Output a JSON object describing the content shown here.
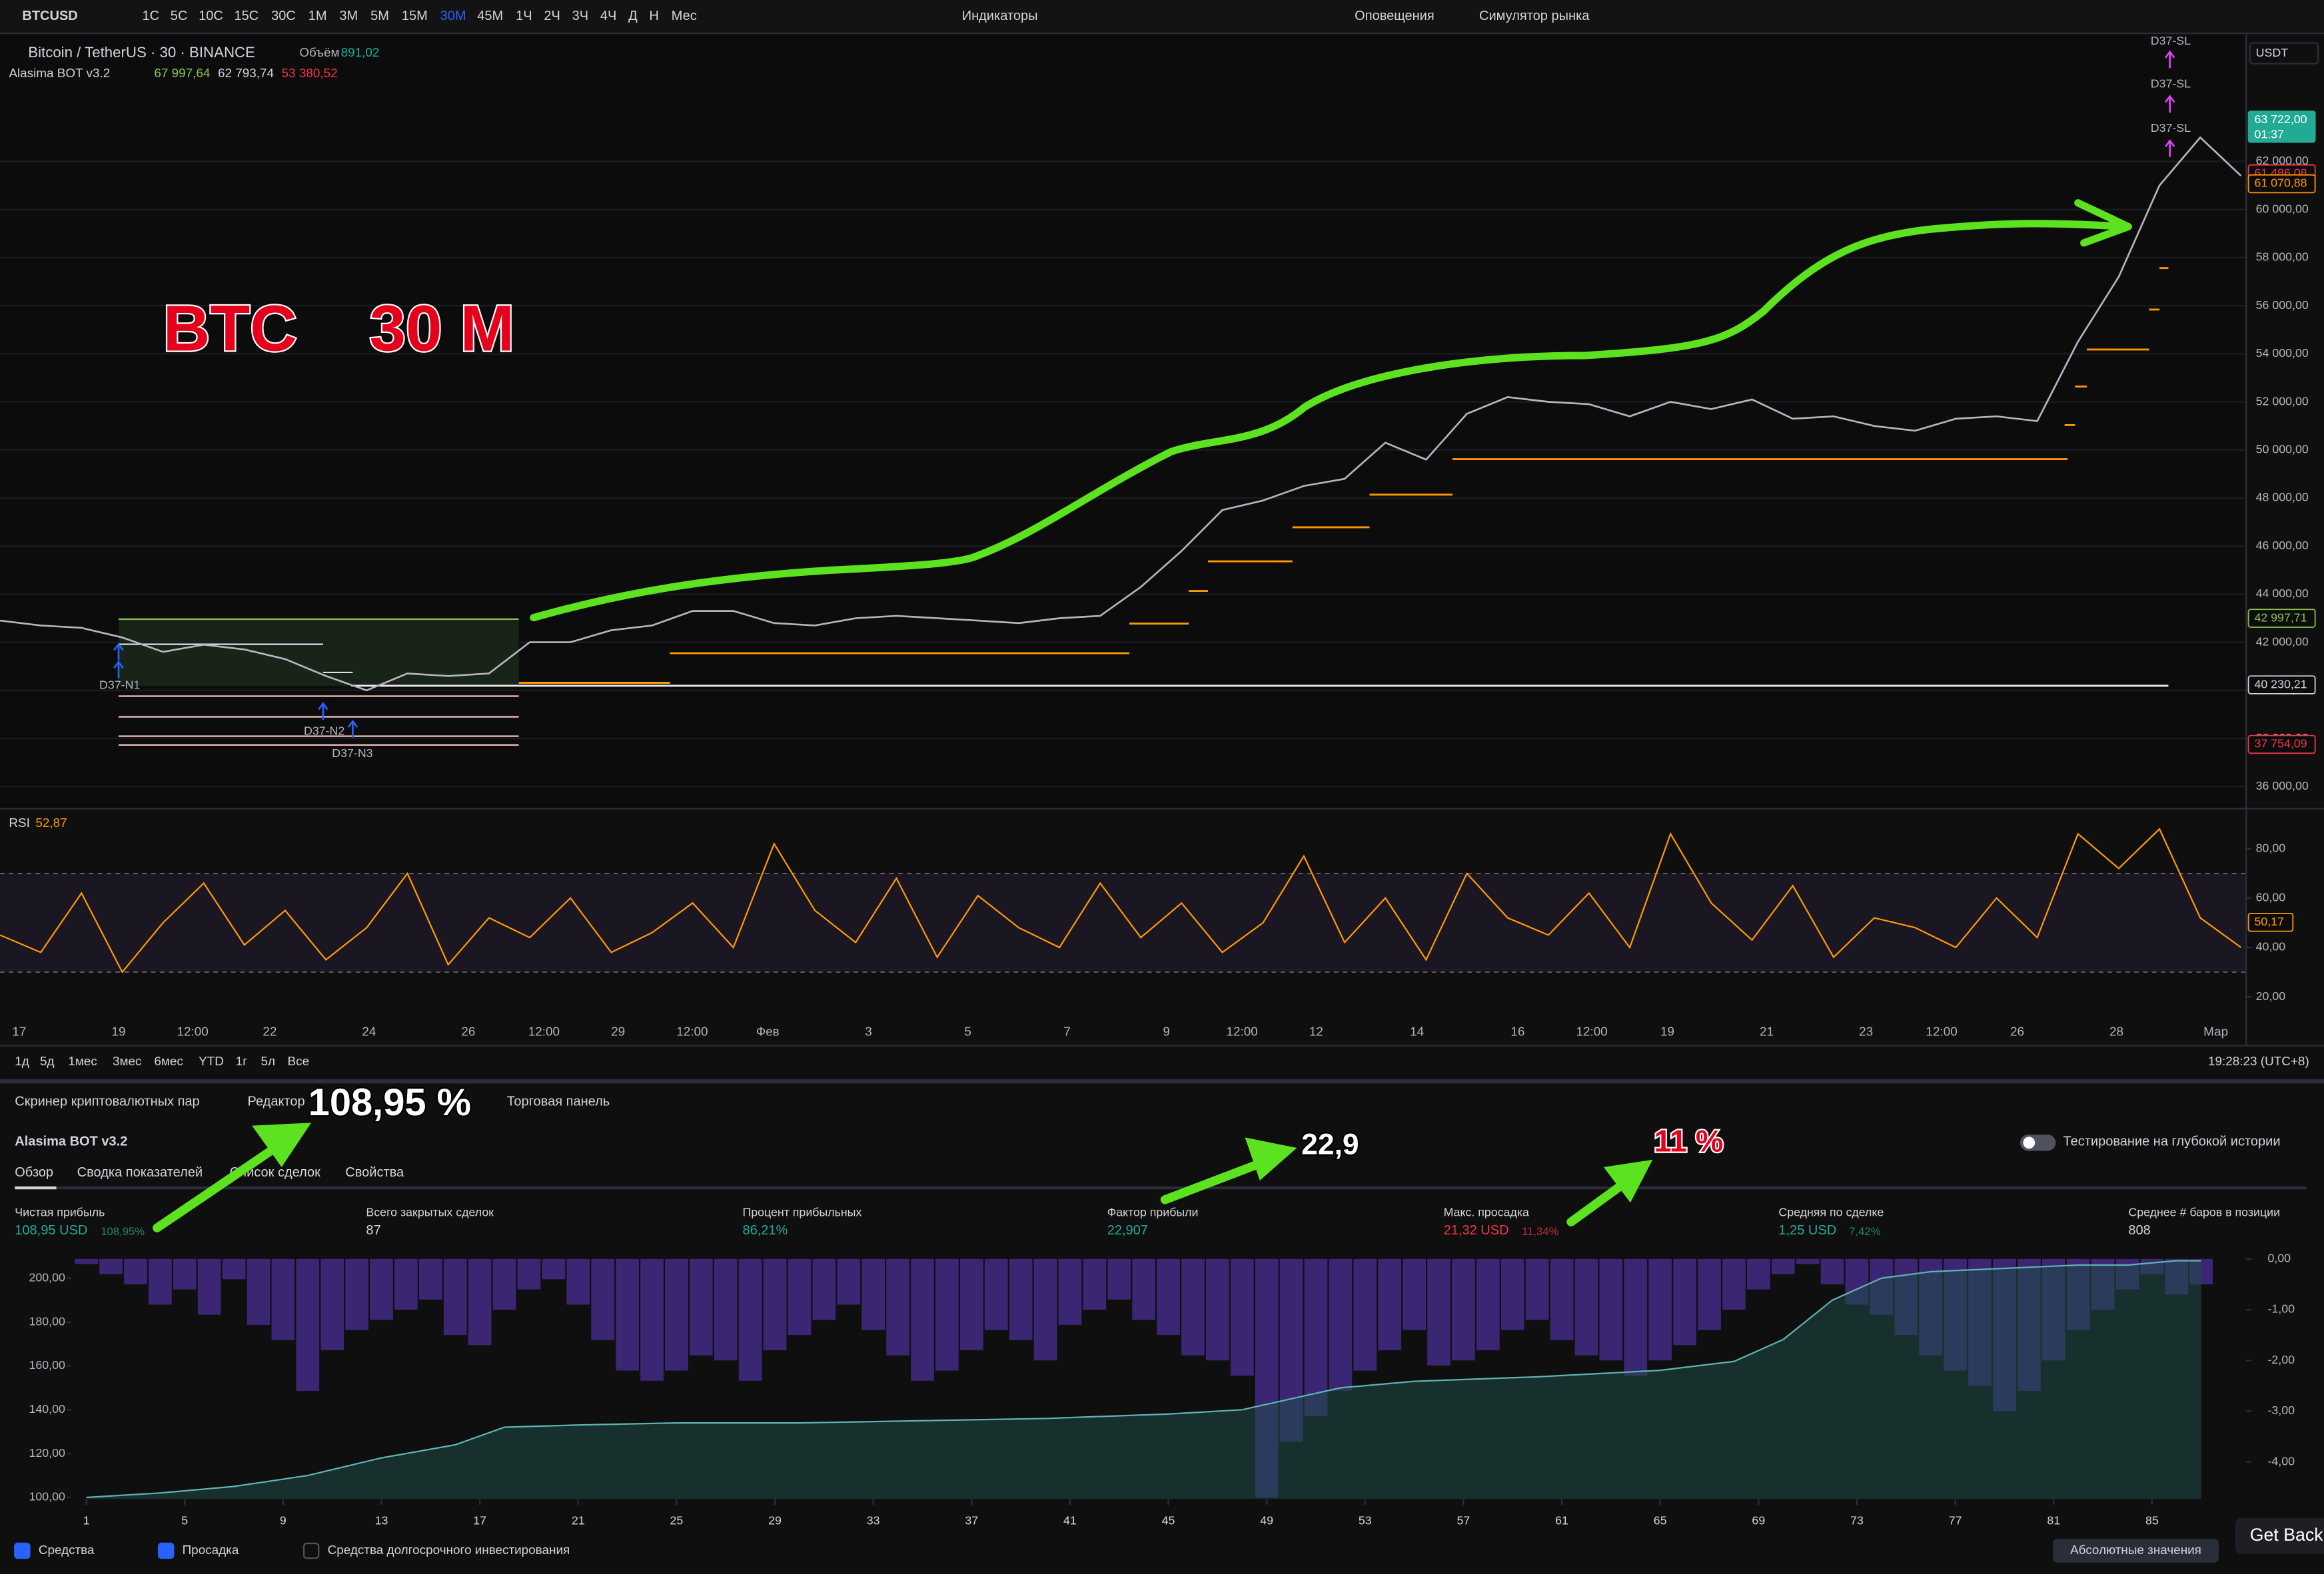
{
  "toolbar": {
    "symbol": "BTCUSD",
    "intervals": [
      "1С",
      "5С",
      "10С",
      "15С",
      "30С",
      "1М",
      "3М",
      "5М",
      "15М",
      "30М",
      "45М",
      "1Ч",
      "2Ч",
      "3Ч",
      "4Ч",
      "Д",
      "Н",
      "Мес"
    ],
    "indicators": "Индикаторы",
    "alerts": "Оповещения",
    "replay": "Симулятор рынка"
  },
  "chart_header": {
    "title": "Bitcoin / TetherUS · 30 · BINANCE",
    "volume_label": "Объём",
    "volume": "891,02",
    "indicator": "Alasima BOT v3.2",
    "indicator_values": [
      "67 997,64",
      "62 793,74",
      "53 380,52"
    ],
    "currency": "USDT"
  },
  "annotations": {
    "headline": "BTC    30 M",
    "profit": "108,95 %",
    "factor": "22,9",
    "drawdown": "11 %"
  },
  "signals": [
    "D37-N1",
    "D37-N2",
    "D37-N3",
    "D37-SL",
    "D37-SL",
    "D37-SL"
  ],
  "chart_data": [
    {
      "type": "line",
      "color": "#b2b5be",
      "values": [
        42900,
        42700,
        42600,
        42200,
        41600,
        41900,
        41700,
        41300,
        40600,
        40000,
        40700,
        40600,
        40700,
        42000,
        42000,
        42500,
        42700,
        43300,
        43300,
        42800,
        42700,
        43000,
        43100,
        43000,
        42900,
        42800,
        43000,
        43100,
        44300,
        45800,
        47500,
        47900,
        48500,
        48800,
        50300,
        49600,
        51500,
        52200,
        52000,
        51900,
        51400,
        52000,
        51700,
        52100,
        51300,
        51400,
        51000,
        50800,
        51300,
        51400,
        51200,
        54500,
        57200,
        61000,
        63000,
        61400
      ],
      "ylim": [
        35140,
        67360
      ],
      "yticks": [
        {
          "value": 62000,
          "label": "62 000,00"
        },
        {
          "value": 60000,
          "label": "60 000,00"
        },
        {
          "value": 58000,
          "label": "58 000,00"
        },
        {
          "value": 56000,
          "label": "56 000,00"
        },
        {
          "value": 54000,
          "label": "54 000,00"
        },
        {
          "value": 52000,
          "label": "52 000,00"
        },
        {
          "value": 50000,
          "label": "50 000,00"
        },
        {
          "value": 48000,
          "label": "48 000,00"
        },
        {
          "value": 46000,
          "label": "46 000,00"
        },
        {
          "value": 44000,
          "label": "44 000,00"
        },
        {
          "value": 42000,
          "label": "42 000,00"
        },
        {
          "value": 40000,
          "label": "40 000,00"
        },
        {
          "value": 38000,
          "label": "38 000,00"
        },
        {
          "value": 36000,
          "label": "36 000,00"
        }
      ],
      "tags": [
        {
          "value": 63722,
          "label": "63 722,00",
          "time": "01:37",
          "color": "#22ab94"
        },
        {
          "value": 61486.08,
          "label": "61 486,08",
          "color": "#f23645"
        },
        {
          "value": 61070.88,
          "label": "61 070,88",
          "color": "#ff9800"
        },
        {
          "value": 42997.71,
          "label": "42 997,71",
          "color": "#8bc34a"
        },
        {
          "value": 40230.21,
          "label": "40 230,21",
          "color": "#d1d4dc"
        },
        {
          "value": 37754.09,
          "label": "37 754,09",
          "color": "#f23645"
        }
      ],
      "grid": true
    },
    {
      "type": "line",
      "title": "RSI",
      "last_value": "52,87",
      "color": "#ff9800",
      "values": [
        45,
        38,
        62,
        30,
        50,
        66,
        41,
        55,
        35,
        48,
        70,
        33,
        52,
        44,
        60,
        38,
        46,
        58,
        40,
        82,
        55,
        42,
        68,
        36,
        61,
        48,
        40,
        66,
        44,
        58,
        38,
        50,
        77,
        42,
        60,
        35,
        70,
        52,
        45,
        62,
        40,
        86,
        58,
        43,
        65,
        36,
        52,
        48,
        40,
        60,
        44,
        86,
        72,
        88,
        52,
        40
      ],
      "ylim": [
        11,
        95
      ],
      "yticks": [
        {
          "value": 80,
          "label": "80,00"
        },
        {
          "value": 60,
          "label": "60,00"
        },
        {
          "value": 40,
          "label": "40,00"
        },
        {
          "value": 20,
          "label": "20,00"
        }
      ],
      "bands": [
        70,
        30
      ],
      "tag": {
        "value": 50.17,
        "label": "50,17"
      }
    },
    {
      "type": "equity",
      "series": [
        {
          "name": "Средства",
          "color": "#5fb3b3",
          "x": [
            1,
            4,
            7,
            10,
            13,
            16,
            18,
            21,
            25,
            30,
            35,
            40,
            45,
            48,
            50,
            52,
            55,
            60,
            65,
            68,
            70,
            72,
            74,
            76,
            78,
            80,
            82,
            84,
            86,
            87
          ],
          "values": [
            100,
            102,
            105,
            110,
            118,
            124,
            132,
            133,
            134,
            134,
            135,
            136,
            138,
            140,
            145,
            150,
            153,
            155,
            158,
            162,
            172,
            190,
            200,
            203,
            204,
            205,
            206,
            206,
            208,
            208
          ]
        },
        {
          "name": "Просадка",
          "color": "#4b2f96",
          "axis": "y2",
          "values": [
            -0.1,
            -0.3,
            -0.5,
            -0.9,
            -0.6,
            -1.1,
            -0.4,
            -1.3,
            -1.6,
            -2.6,
            -1.8,
            -1.4,
            -1.2,
            -1.0,
            -0.8,
            -1.5,
            -1.7,
            -1.0,
            -0.6,
            -0.4,
            -0.9,
            -1.6,
            -2.2,
            -2.4,
            -2.2,
            -1.9,
            -2.0,
            -2.4,
            -1.8,
            -1.5,
            -1.2,
            -0.9,
            -1.4,
            -1.9,
            -2.4,
            -2.2,
            -1.8,
            -1.4,
            -1.6,
            -2.0,
            -1.3,
            -1.0,
            -0.8,
            -1.2,
            -1.5,
            -1.9,
            -2.0,
            -2.3,
            -4.7,
            -3.6,
            -3.1,
            -2.6,
            -2.2,
            -1.8,
            -1.4,
            -2.1,
            -2.0,
            -1.8,
            -1.4,
            -1.2,
            -1.6,
            -1.9,
            -2.0,
            -2.3,
            -2.0,
            -1.7,
            -1.4,
            -1.0,
            -0.6,
            -0.3,
            -0.1,
            -0.5,
            -0.9,
            -1.1,
            -1.5,
            -1.9,
            -2.2,
            -2.5,
            -3.0,
            -2.6,
            -2.0,
            -1.4,
            -1.0,
            -0.6,
            -0.3,
            -0.7,
            -0.5
          ]
        }
      ],
      "xlim": [
        0.2,
        88.8
      ],
      "xticks": [
        1,
        5,
        9,
        13,
        17,
        21,
        25,
        29,
        33,
        37,
        41,
        45,
        49,
        53,
        57,
        61,
        65,
        69,
        73,
        77,
        81,
        85
      ],
      "ylim": [
        99.3,
        208.8
      ],
      "yticks": [
        {
          "value": 200,
          "label": "200,00"
        },
        {
          "value": 180,
          "label": "180,00"
        },
        {
          "value": 160,
          "label": "160,00"
        },
        {
          "value": 140,
          "label": "140,00"
        },
        {
          "value": 120,
          "label": "120,00"
        },
        {
          "value": 100,
          "label": "100,00"
        }
      ],
      "y2lim": [
        -4.73,
        0
      ],
      "y2ticks": [
        {
          "value": 0,
          "label": "0,00"
        },
        {
          "value": -1,
          "label": "-1,00"
        },
        {
          "value": -2,
          "label": "-2,00"
        },
        {
          "value": -3,
          "label": "-3,00"
        },
        {
          "value": -4,
          "label": "-4,00"
        }
      ]
    }
  ],
  "date_axis": [
    "17",
    "19",
    "12:00",
    "22",
    "24",
    "26",
    "12:00",
    "29",
    "12:00",
    "Фев",
    "3",
    "5",
    "7",
    "9",
    "12:00",
    "12",
    "14",
    "16",
    "12:00",
    "19",
    "21",
    "23",
    "12:00",
    "26",
    "28",
    "Мар"
  ],
  "range_bar": {
    "ranges": [
      "1д",
      "5д",
      "1мес",
      "3мес",
      "6мес",
      "YTD",
      "1г",
      "5л",
      "Все"
    ],
    "clock": "19:28:23 (UTC+8)"
  },
  "panel": {
    "tabs": [
      "Скринер криптовалютных пар",
      "Редактор",
      "Торговая панель"
    ],
    "strategy": "Alasima BOT v3.2",
    "deep_history": "Тестирование на глубокой истории",
    "subtabs": [
      "Обзор",
      "Сводка показателей",
      "Список сделок",
      "Свойства"
    ],
    "metrics": [
      {
        "label": "Чистая прибыль",
        "value": "108,95 USD",
        "sub": "108,95%",
        "color": "#22ab94"
      },
      {
        "label": "Всего закрытых сделок",
        "value": "87",
        "color": "#d1d4dc"
      },
      {
        "label": "Процент прибыльных",
        "value": "86,21%",
        "color": "#22ab94"
      },
      {
        "label": "Фактор прибыли",
        "value": "22,907",
        "color": "#22ab94"
      },
      {
        "label": "Макс. просадка",
        "value": "21,32 USD",
        "sub": "11,34%",
        "color": "#f23645"
      },
      {
        "label": "Средняя по сделке",
        "value": "1,25 USD",
        "sub": "7,42%",
        "color": "#22ab94"
      },
      {
        "label": "Среднее # баров в позиции",
        "value": "808",
        "color": "#d1d4dc"
      }
    ]
  },
  "bottom_bar": {
    "checkboxes": [
      "Средства",
      "Просадка",
      "Средства долгосрочного инвестирования"
    ],
    "scale_button": "Абсолютные значения",
    "chat_button": "Get Back"
  }
}
